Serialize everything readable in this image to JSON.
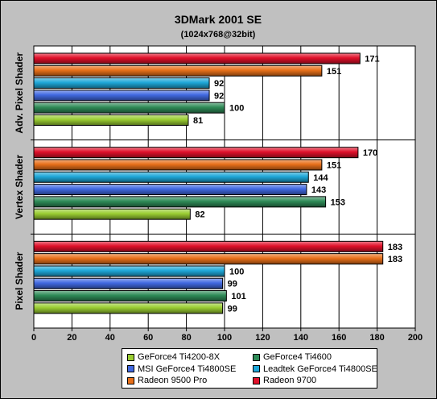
{
  "chart_data": {
    "type": "bar",
    "orientation": "horizontal",
    "title": "3DMark 2001 SE",
    "subtitle": "(1024x768@32bit)",
    "categories": [
      "Adv. Pixel Shader",
      "Vertex Shader",
      "Pixel Shader"
    ],
    "series": [
      {
        "name": "GeForce4 Ti4200-8X",
        "color": "#9acd32",
        "values": [
          81,
          82,
          99
        ]
      },
      {
        "name": "GeForce4 Ti4600",
        "color": "#2e8b57",
        "values": [
          100,
          153,
          101
        ]
      },
      {
        "name": "MSI GeForce4 Ti4800SE",
        "color": "#4169e1",
        "values": [
          92,
          143,
          99
        ]
      },
      {
        "name": "Leadtek GeForce4 Ti4800SE",
        "color": "#1ea7d8",
        "values": [
          92,
          144,
          100
        ]
      },
      {
        "name": "Radeon 9500 Pro",
        "color": "#e8701a",
        "values": [
          151,
          151,
          183
        ]
      },
      {
        "name": "Radeon 9700",
        "color": "#e0102a",
        "values": [
          171,
          170,
          183
        ]
      }
    ],
    "xlim": [
      0,
      200
    ],
    "xticks": [
      0,
      20,
      40,
      60,
      80,
      100,
      120,
      140,
      160,
      180,
      200
    ],
    "grid": true,
    "legend_position": "bottom"
  }
}
